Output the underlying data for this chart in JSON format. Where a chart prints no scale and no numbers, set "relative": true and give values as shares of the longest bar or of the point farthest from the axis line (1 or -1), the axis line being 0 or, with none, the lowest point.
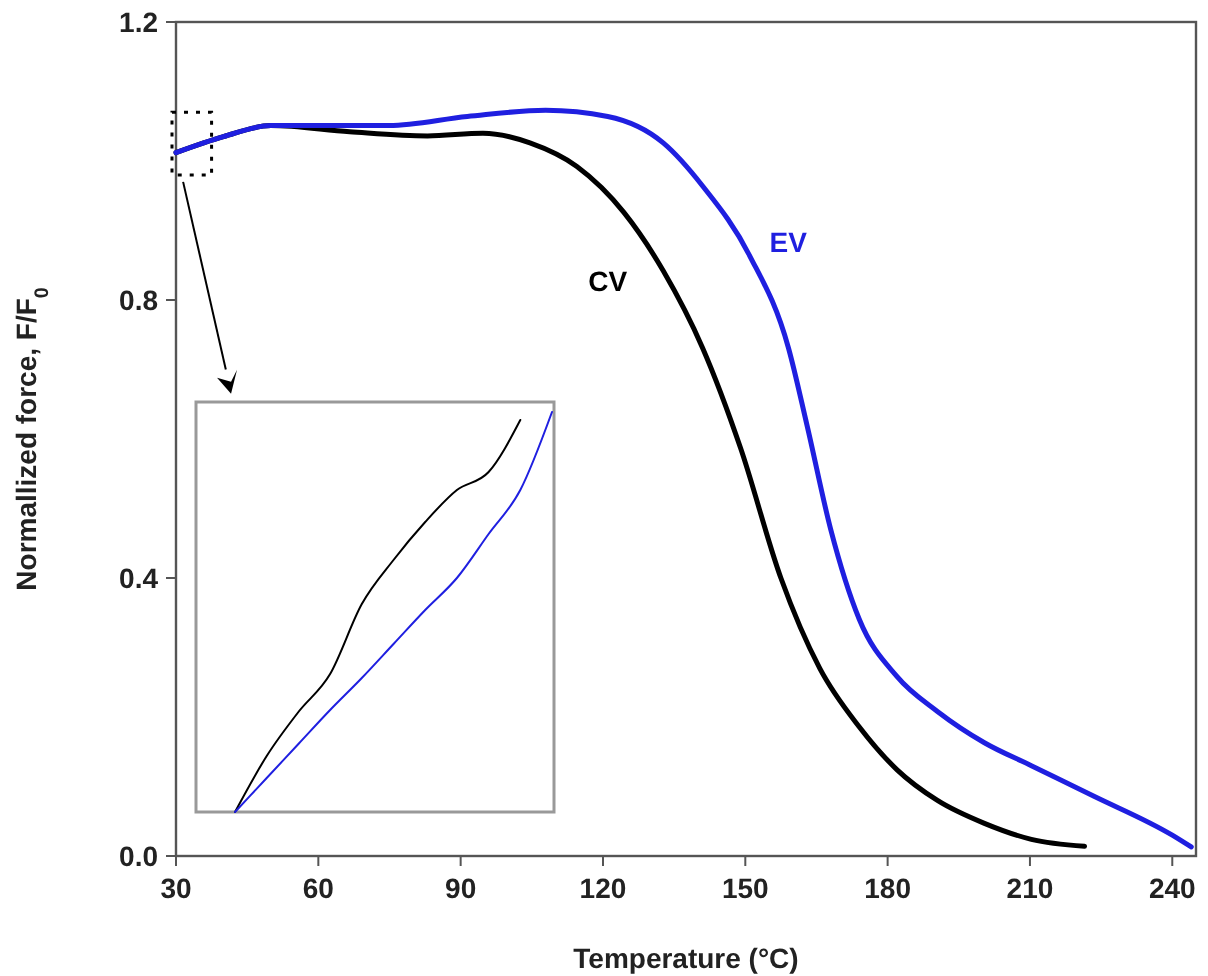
{
  "chart_data": [
    {
      "type": "line",
      "xlabel": "Temperature (°C)",
      "ylabel": "Normallized force, F/F$_{0}$",
      "xlim": [
        30,
        245
      ],
      "xticks": [
        30,
        60,
        90,
        120,
        150,
        180,
        210,
        240
      ],
      "ylim": [
        0,
        1.2
      ],
      "yticks": [
        {
          "value": 0,
          "label": "0.0"
        },
        {
          "value": 0.4,
          "label": "0.4"
        },
        {
          "value": 0.8,
          "label": "0.8"
        },
        {
          "value": 1.2,
          "label": "1.2"
        }
      ],
      "series": [
        {
          "name": "CV",
          "color": "#000000",
          "x": [
            30,
            40,
            50,
            66.6,
            83,
            94.7,
            104.6,
            114.5,
            124.4,
            132.7,
            141,
            149,
            157.5,
            165.7,
            174,
            182,
            190.5,
            200.4,
            210.3,
            221.5
          ],
          "values": [
            1.012,
            1.035,
            1.051,
            1.042,
            1.036,
            1.04,
            1.026,
            0.992,
            0.926,
            0.842,
            0.731,
            0.587,
            0.4,
            0.27,
            0.186,
            0.124,
            0.08,
            0.047,
            0.024,
            0.014
          ]
        },
        {
          "name": "EV",
          "color": "#1f1fe0",
          "x": [
            30,
            40,
            50,
            74.9,
            91.4,
            107.9,
            121,
            132.7,
            141,
            150.9,
            159.1,
            163,
            168,
            174,
            182,
            190.5,
            200.4,
            210.3,
            223.5,
            240,
            244
          ],
          "values": [
            1.012,
            1.035,
            1.051,
            1.051,
            1.064,
            1.073,
            1.064,
            1.026,
            0.964,
            0.864,
            0.731,
            0.62,
            0.47,
            0.341,
            0.258,
            0.208,
            0.163,
            0.13,
            0.086,
            0.03,
            0.013
          ]
        }
      ]
    },
    {
      "type": "line",
      "relative": true,
      "categories": [
        null,
        null,
        null,
        null,
        null,
        null,
        null,
        null,
        null,
        null,
        null
      ],
      "series": [
        {
          "color": "#000000",
          "values": [
            0,
            0.14,
            0.25,
            0.345,
            0.52,
            0.63,
            0.725,
            0.805,
            0.85,
            0.98,
            null
          ]
        },
        {
          "color": "#1f1fe0",
          "values": [
            0,
            0.085,
            0.17,
            0.255,
            0.335,
            0.42,
            0.505,
            0.585,
            0.695,
            0.805,
            1
          ]
        }
      ]
    }
  ]
}
